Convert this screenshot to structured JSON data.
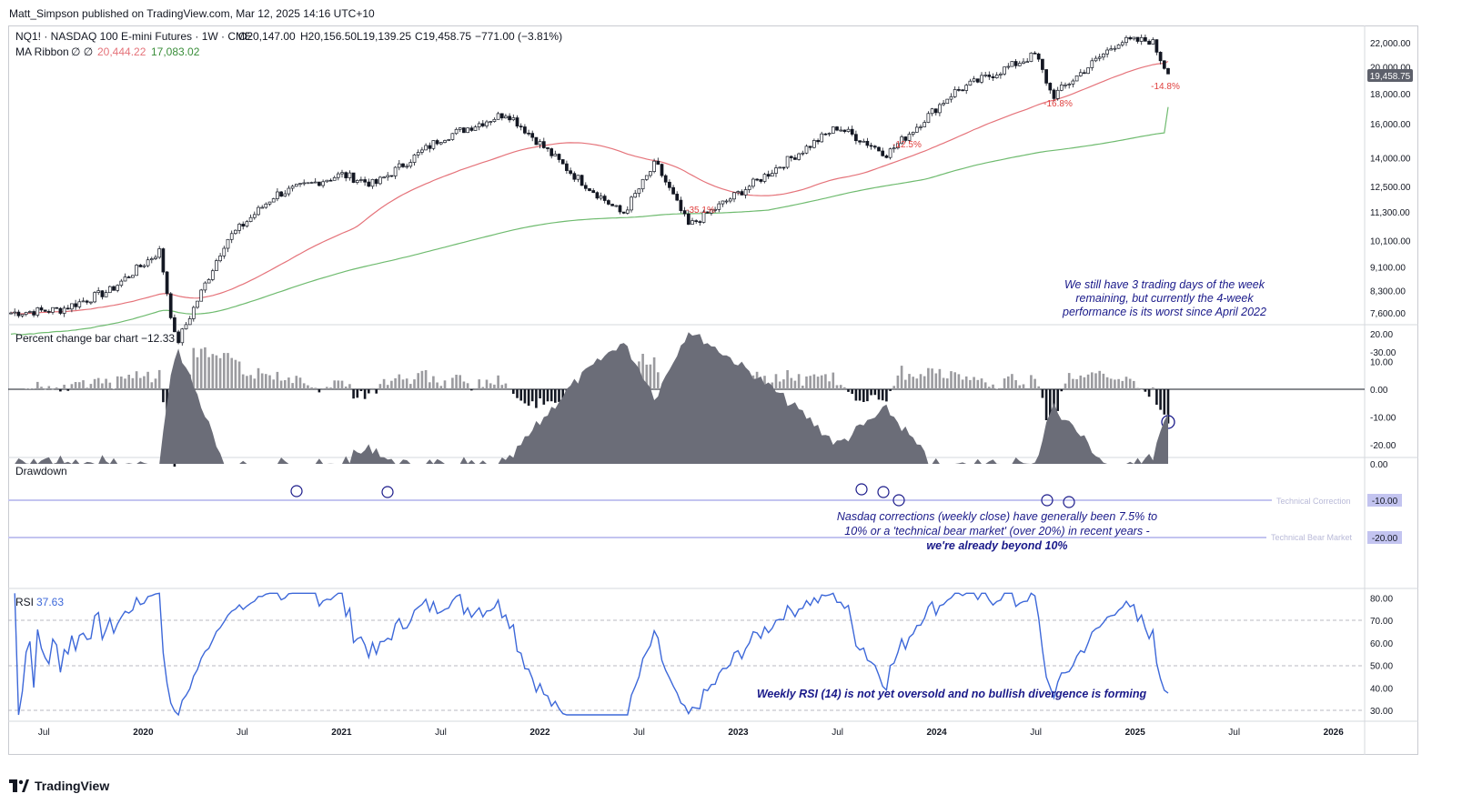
{
  "header": {
    "attribution": "Matt_Simpson published on TradingView.com, Mar 12, 2025 14:16 UTC+10"
  },
  "legend": {
    "symbol_line": "NQ1! · NASDAQ 100 E-mini Futures · 1W · CME",
    "ohlc": {
      "O": "O20,147.00",
      "H": "H20,156.50",
      "L": "L19,139.25",
      "C": "C19,458.75",
      "chg": "−771.00 (−3.81%)"
    },
    "ma_label": "MA Ribbon",
    "ma_glyphs": "∅  ∅",
    "ma_fast": "20,444.22",
    "ma_slow": "17,083.02"
  },
  "colors": {
    "ma_fast": "#e5737a",
    "ma_slow": "#6fbb6f",
    "rsi_line": "#3d68d9",
    "bar_pos": "#9b9b9f",
    "bar_neg": "#131722",
    "drawdown_fill": "#6b6d78",
    "annotation": "#1a1a8a",
    "drop_label": "#e0403e",
    "price_tag_bg": "#5d606b",
    "threshold_line": "#c3c4f0"
  },
  "panes": {
    "price": {
      "yticks": [
        "22,000.00",
        "20,000.00",
        "18,000.00",
        "16,000.00",
        "14,000.00",
        "12,500.00",
        "11,300.00",
        "10,100.00",
        "9,100.00",
        "8,300.00",
        "7,600.00"
      ],
      "last_price_tag": "19,458.75",
      "drops": [
        "-35.1%",
        "-12.5%",
        "-16.8%",
        "-14.8%"
      ],
      "annotation": [
        "We still have 3 trading days of the week",
        "remaining, but currently the 4-week",
        "performance is its worst since April 2022"
      ]
    },
    "pct": {
      "label": "Percent change bar chart",
      "value": "−12.33",
      "yticks": [
        "20.00",
        "10.00",
        "0.00",
        "-10.00",
        "-20.00"
      ]
    },
    "drawdown": {
      "label": "Drawdown",
      "yticks": [
        "0.00",
        "-30.00"
      ],
      "tech_correction_label": "Technical Correction",
      "tech_correction_value": "-10.00",
      "tech_bear_label": "Technical Bear Market",
      "tech_bear_value": "-20.00",
      "annotation": [
        "Nasdaq corrections (weekly close) have generally been 7.5% to",
        "10% or a 'technical bear market' (over 20%) in recent years -",
        "we're already beyond 10%"
      ]
    },
    "rsi": {
      "label": "RSI",
      "value": "37.63",
      "yticks": [
        "80.00",
        "70.00",
        "60.00",
        "50.00",
        "40.00",
        "30.00"
      ],
      "annotation": "Weekly RSI (14) is not yet oversold and no bullish divergence is forming"
    }
  },
  "xaxis": {
    "labels": [
      "Jul",
      "2020",
      "Jul",
      "2021",
      "Jul",
      "2022",
      "Jul",
      "2023",
      "Jul",
      "2024",
      "Jul",
      "2025",
      "Jul",
      "2026"
    ]
  },
  "footer": {
    "brand": "TradingView"
  },
  "chart_data": {
    "type": "candlestick",
    "title": "NQ1! · NASDAQ 100 E-mini Futures · 1W · CME",
    "x_range": [
      "2019-04",
      "2026-03"
    ],
    "last_close": 19458.75,
    "ylim": [
      7600,
      22500
    ],
    "y_scale": "log",
    "grid": false,
    "price_anchors": [
      {
        "x": "2019-05",
        "y": 7600
      },
      {
        "x": "2019-08",
        "y": 7700
      },
      {
        "x": "2019-11",
        "y": 8300
      },
      {
        "x": "2020-02",
        "y": 9700
      },
      {
        "x": "2020-03",
        "y": 6700
      },
      {
        "x": "2020-06",
        "y": 10100
      },
      {
        "x": "2020-09",
        "y": 12100
      },
      {
        "x": "2021-01",
        "y": 13100
      },
      {
        "x": "2021-03",
        "y": 12600
      },
      {
        "x": "2021-07",
        "y": 15100
      },
      {
        "x": "2021-11",
        "y": 16700
      },
      {
        "x": "2022-03",
        "y": 13100
      },
      {
        "x": "2022-06",
        "y": 11200
      },
      {
        "x": "2022-08",
        "y": 13700
      },
      {
        "x": "2022-10",
        "y": 10700
      },
      {
        "x": "2023-02",
        "y": 12700
      },
      {
        "x": "2023-07",
        "y": 15800
      },
      {
        "x": "2023-10",
        "y": 14200
      },
      {
        "x": "2024-02",
        "y": 18100
      },
      {
        "x": "2024-07",
        "y": 21000
      },
      {
        "x": "2024-08",
        "y": 17800
      },
      {
        "x": "2024-12",
        "y": 22100
      },
      {
        "x": "2025-02",
        "y": 22200
      },
      {
        "x": "2025-03",
        "y": 19458.75
      }
    ],
    "ma_fast_last": 20444.22,
    "ma_slow_last": 17083.02,
    "drops": [
      {
        "label": "-35.1%",
        "x": "2022-10"
      },
      {
        "label": "-12.5%",
        "x": "2023-10"
      },
      {
        "label": "-16.8%",
        "x": "2024-08"
      },
      {
        "label": "-14.8%",
        "x": "2025-03"
      }
    ],
    "percent_change_last": -12.33,
    "drawdown_levels": [
      -10,
      -20
    ],
    "rsi_last": 37.63,
    "rsi_ylim": [
      30,
      80
    ],
    "rsi_guides": [
      70,
      50,
      30
    ]
  }
}
